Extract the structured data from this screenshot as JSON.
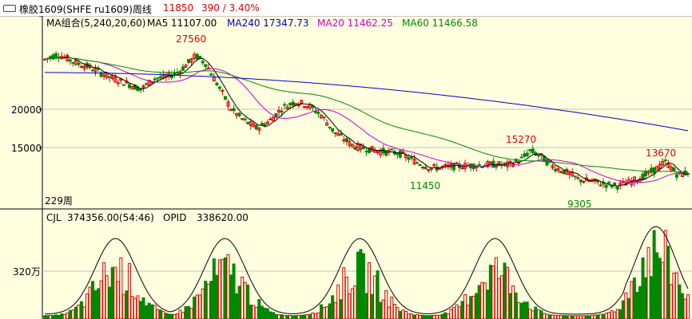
{
  "window": {
    "title": "橡胶1609(SHFE ru1609)周线",
    "last_price": "11850",
    "change": "390 / 3.40%"
  },
  "price_panel": {
    "ma_group_label": "MA组合(5,240,20,60)",
    "ma_lines": [
      {
        "label": "MA5 11107.00",
        "color": "#000000"
      },
      {
        "label": "MA240 17347.73",
        "color": "#0000cc"
      },
      {
        "label": "MA20 11462.25",
        "color": "#cc00cc"
      },
      {
        "label": "MA60 11466.58",
        "color": "#008800"
      }
    ],
    "y_ticks": [
      "20000",
      "15000"
    ],
    "annotations": [
      {
        "text": "27560",
        "color": "#e00000"
      },
      {
        "text": "15270",
        "color": "#e00000"
      },
      {
        "text": "13670",
        "color": "#e00000"
      },
      {
        "text": "11450",
        "color": "#008800"
      },
      {
        "text": "9305",
        "color": "#008800"
      }
    ],
    "period_label": "229周"
  },
  "volume_panel": {
    "cjl_label": "CJL",
    "cjl_value": "374356.00(54:46)",
    "opid_label": "OPID",
    "opid_value": "338620.00",
    "y_tick": "320万"
  },
  "colors": {
    "background": "#ffffe0",
    "up": "#e00000",
    "down": "#008800",
    "grid": "#c0c0c0"
  }
}
